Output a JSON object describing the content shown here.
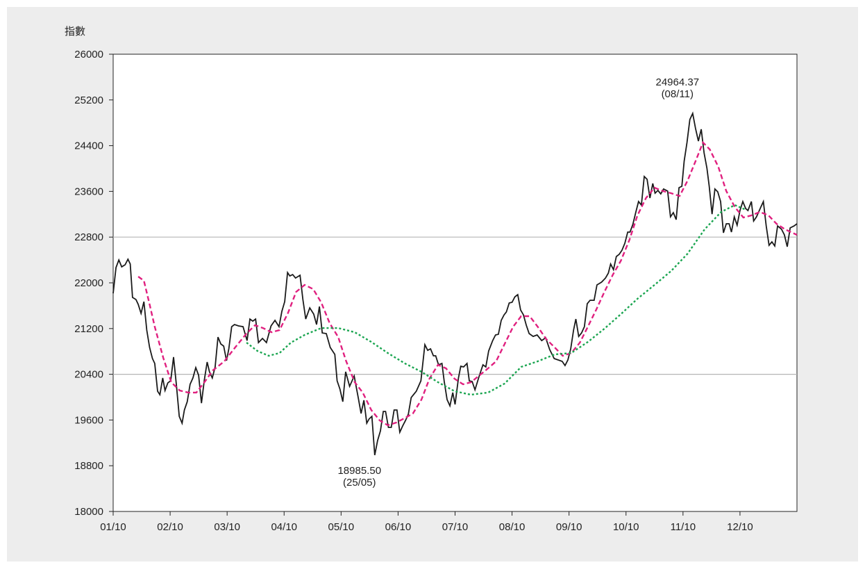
{
  "chart_data": {
    "type": "line",
    "y_label": "指數",
    "xlim": [
      0,
      12
    ],
    "xticks": [
      {
        "value": 0,
        "label": "01/10"
      },
      {
        "value": 1,
        "label": "02/10"
      },
      {
        "value": 2,
        "label": "03/10"
      },
      {
        "value": 3,
        "label": "04/10"
      },
      {
        "value": 4,
        "label": "05/10"
      },
      {
        "value": 5,
        "label": "06/10"
      },
      {
        "value": 6,
        "label": "07/10"
      },
      {
        "value": 7,
        "label": "08/10"
      },
      {
        "value": 8,
        "label": "09/10"
      },
      {
        "value": 9,
        "label": "10/10"
      },
      {
        "value": 10,
        "label": "11/10"
      },
      {
        "value": 11,
        "label": "12/10"
      }
    ],
    "ylim": [
      18000,
      26000
    ],
    "yticks": [
      18000,
      18800,
      19600,
      20400,
      21200,
      22000,
      22800,
      23600,
      24400,
      25200,
      26000
    ],
    "reference_lines": [
      22800,
      20400
    ],
    "annotations": [
      {
        "value": "24964.37",
        "date": "(08/11)",
        "x": 10.17,
        "y": 24964.37
      },
      {
        "value": "18985.50",
        "date": "(25/05)",
        "x": 4.59,
        "y": 18985.5
      }
    ],
    "series": [
      {
        "color": "#1a1a1a",
        "style": "solid",
        "x": [
          0,
          0.05,
          0.1,
          0.15,
          0.21,
          0.26,
          0.3,
          0.34,
          0.4,
          0.44,
          0.49,
          0.54,
          0.59,
          0.64,
          0.69,
          0.73,
          0.78,
          0.82,
          0.87,
          0.91,
          0.96,
          1.01,
          1.06,
          1.11,
          1.16,
          1.21,
          1.25,
          1.3,
          1.35,
          1.4,
          1.45,
          1.5,
          1.55,
          1.6,
          1.65,
          1.69,
          1.74,
          1.79,
          1.84,
          1.89,
          1.94,
          1.99,
          2.03,
          2.08,
          2.13,
          2.2,
          2.28,
          2.35,
          2.4,
          2.45,
          2.5,
          2.55,
          2.62,
          2.69,
          2.77,
          2.84,
          2.91,
          2.96,
          3.01,
          3.06,
          3.1,
          3.15,
          3.2,
          3.28,
          3.33,
          3.38,
          3.45,
          3.52,
          3.57,
          3.62,
          3.67,
          3.74,
          3.81,
          3.89,
          3.93,
          3.98,
          4.03,
          4.08,
          4.15,
          4.23,
          4.3,
          4.35,
          4.4,
          4.45,
          4.49,
          4.54,
          4.59,
          4.64,
          4.69,
          4.74,
          4.78,
          4.83,
          4.88,
          4.93,
          4.98,
          5.03,
          5.08,
          5.13,
          5.18,
          5.23,
          5.27,
          5.32,
          5.4,
          5.47,
          5.52,
          5.57,
          5.62,
          5.66,
          5.71,
          5.77,
          5.81,
          5.86,
          5.91,
          5.96,
          6.0,
          6.06,
          6.1,
          6.15,
          6.21,
          6.25,
          6.3,
          6.35,
          6.42,
          6.49,
          6.54,
          6.59,
          6.66,
          6.71,
          6.76,
          6.81,
          6.86,
          6.9,
          6.95,
          7.0,
          7.05,
          7.1,
          7.15,
          7.2,
          7.25,
          7.3,
          7.37,
          7.44,
          7.52,
          7.59,
          7.66,
          7.74,
          7.81,
          7.88,
          7.93,
          7.98,
          8.03,
          8.08,
          8.12,
          8.17,
          8.22,
          8.27,
          8.32,
          8.37,
          8.44,
          8.49,
          8.57,
          8.64,
          8.69,
          8.73,
          8.78,
          8.83,
          8.88,
          8.93,
          8.98,
          9.03,
          9.07,
          9.12,
          9.17,
          9.22,
          9.27,
          9.32,
          9.37,
          9.42,
          9.47,
          9.51,
          9.56,
          9.61,
          9.66,
          9.73,
          9.78,
          9.83,
          9.88,
          9.93,
          9.98,
          10.02,
          10.07,
          10.12,
          10.17,
          10.22,
          10.27,
          10.32,
          10.37,
          10.42,
          10.46,
          10.51,
          10.56,
          10.61,
          10.66,
          10.71,
          10.76,
          10.81,
          10.85,
          10.9,
          10.95,
          11.0,
          11.05,
          11.1,
          11.14,
          11.2,
          11.24,
          11.29,
          11.36,
          11.41,
          11.46,
          11.51,
          11.56,
          11.61,
          11.66,
          11.73,
          11.78,
          11.83,
          11.88,
          11.95,
          12.0
        ],
        "values": [
          21817,
          22267,
          22400,
          22280,
          22316,
          22413,
          22330,
          21745,
          21708,
          21623,
          21465,
          21671,
          21173,
          20869,
          20675,
          20590,
          20104,
          20043,
          20335,
          20116,
          20250,
          20286,
          20700,
          20213,
          19665,
          19544,
          19775,
          19920,
          20225,
          20335,
          20517,
          20383,
          19896,
          20298,
          20614,
          20444,
          20335,
          20529,
          21051,
          20930,
          20894,
          20638,
          20845,
          21233,
          21270,
          21246,
          21233,
          20990,
          21367,
          21330,
          21367,
          20954,
          21027,
          20954,
          21246,
          21343,
          21233,
          21500,
          21671,
          22180,
          22120,
          22145,
          22084,
          22133,
          21708,
          21367,
          21562,
          21453,
          21270,
          21586,
          21124,
          21112,
          20869,
          20748,
          20286,
          20140,
          19920,
          20444,
          20189,
          20370,
          19993,
          19714,
          19945,
          19544,
          19617,
          19665,
          18985.5,
          19240,
          19410,
          19750,
          19750,
          19471,
          19471,
          19775,
          19775,
          19386,
          19495,
          19592,
          19702,
          19993,
          20043,
          20104,
          20286,
          20918,
          20820,
          20845,
          20723,
          20723,
          20565,
          20590,
          20274,
          19957,
          19848,
          20080,
          19872,
          20335,
          20541,
          20529,
          20590,
          20286,
          20274,
          20128,
          20359,
          20565,
          20529,
          20808,
          20990,
          21088,
          21100,
          21343,
          21440,
          21489,
          21647,
          21659,
          21756,
          21793,
          21525,
          21440,
          21258,
          21112,
          21063,
          21088,
          20990,
          21039,
          20833,
          20675,
          20650,
          20626,
          20553,
          20650,
          20845,
          21173,
          21367,
          21063,
          21124,
          21233,
          21635,
          21695,
          21695,
          21963,
          22012,
          22084,
          22170,
          22330,
          22230,
          22461,
          22498,
          22571,
          22693,
          22887,
          22887,
          23021,
          23228,
          23422,
          23361,
          23860,
          23811,
          23483,
          23738,
          23568,
          23617,
          23556,
          23641,
          23605,
          23155,
          23228,
          23106,
          23665,
          23690,
          24128,
          24456,
          24857,
          24964.37,
          24700,
          24480,
          24687,
          24273,
          24006,
          23690,
          23203,
          23641,
          23592,
          23422,
          22875,
          23033,
          23033,
          22887,
          23155,
          23009,
          23264,
          23422,
          23300,
          23264,
          23422,
          23082,
          23155,
          23313,
          23422,
          22996,
          22656,
          22717,
          22644,
          22996,
          22936,
          22839,
          22632,
          22960,
          22996,
          23033
        ]
      },
      {
        "color": "#e0207f",
        "style": "dashed",
        "x": [
          0.44,
          0.54,
          0.64,
          0.73,
          0.88,
          1.02,
          1.17,
          1.32,
          1.46,
          1.61,
          1.75,
          1.95,
          2.14,
          2.34,
          2.49,
          2.63,
          2.78,
          2.92,
          3.07,
          3.21,
          3.36,
          3.51,
          3.65,
          3.8,
          3.95,
          4.09,
          4.24,
          4.38,
          4.53,
          4.68,
          4.82,
          4.97,
          5.11,
          5.26,
          5.41,
          5.55,
          5.7,
          5.84,
          5.99,
          6.14,
          6.28,
          6.43,
          6.58,
          6.72,
          6.87,
          7.02,
          7.16,
          7.31,
          7.45,
          7.6,
          7.75,
          7.89,
          8.04,
          8.19,
          8.33,
          8.48,
          8.62,
          8.77,
          8.91,
          9.06,
          9.2,
          9.35,
          9.5,
          9.65,
          9.79,
          9.94,
          10.08,
          10.23,
          10.35,
          10.47,
          10.62,
          10.76,
          10.91,
          11.06,
          11.2,
          11.35,
          11.5,
          11.64,
          11.79,
          12.0
        ],
        "values": [
          22109,
          22036,
          21623,
          21233,
          20687,
          20262,
          20116,
          20080,
          20080,
          20274,
          20468,
          20626,
          20869,
          21112,
          21258,
          21209,
          21136,
          21173,
          21477,
          21841,
          21963,
          21890,
          21659,
          21294,
          21051,
          20626,
          20262,
          20080,
          19775,
          19592,
          19507,
          19556,
          19629,
          19714,
          19957,
          20322,
          20565,
          20505,
          20322,
          20225,
          20262,
          20383,
          20505,
          20626,
          20930,
          21233,
          21416,
          21416,
          21233,
          21015,
          20869,
          20723,
          20772,
          20954,
          21233,
          21537,
          21841,
          22145,
          22388,
          22753,
          23179,
          23483,
          23665,
          23605,
          23568,
          23519,
          23787,
          24152,
          24456,
          24334,
          24030,
          23605,
          23325,
          23143,
          23179,
          23240,
          23179,
          23033,
          22936,
          22839
        ]
      },
      {
        "color": "#1aa550",
        "style": "dotted",
        "x": [
          2.34,
          2.53,
          2.73,
          2.92,
          3.12,
          3.36,
          3.65,
          3.95,
          4.24,
          4.53,
          4.82,
          5.12,
          5.41,
          5.7,
          5.99,
          6.28,
          6.58,
          6.87,
          7.16,
          7.45,
          7.75,
          8.04,
          8.33,
          8.62,
          8.91,
          9.2,
          9.5,
          9.79,
          10.08,
          10.38,
          10.67,
          10.91,
          11.11
        ],
        "values": [
          20954,
          20808,
          20723,
          20772,
          20954,
          21088,
          21209,
          21209,
          21136,
          20966,
          20772,
          20590,
          20444,
          20262,
          20104,
          20043,
          20080,
          20238,
          20529,
          20626,
          20748,
          20772,
          20966,
          21197,
          21453,
          21720,
          21963,
          22206,
          22510,
          22936,
          23240,
          23361,
          23276
        ]
      }
    ]
  }
}
